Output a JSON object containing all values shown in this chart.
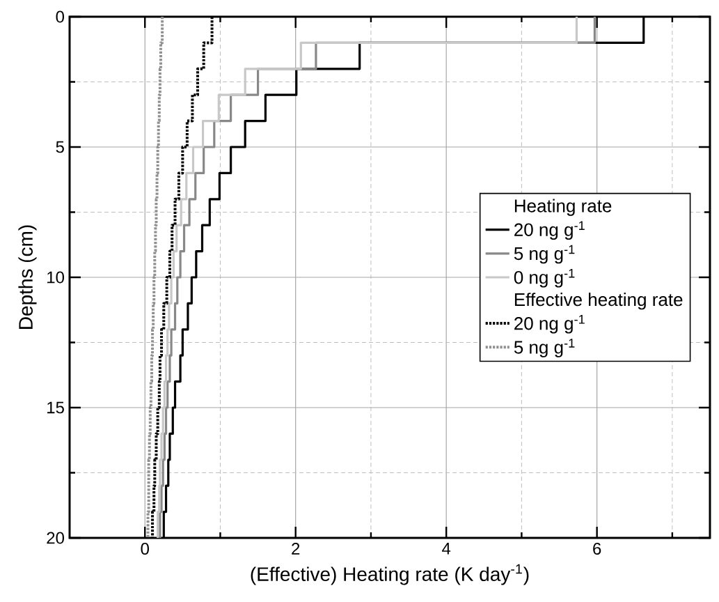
{
  "chart_data": {
    "type": "step",
    "orientation": "horizontal",
    "xlabel": "(Effective) Heating rate (K day$^{-1}$)",
    "ylabel": "Depths (cm)",
    "legend_title": "Heating rate",
    "annotations": [
      "Effective heating rate"
    ],
    "x": [
      0,
      1,
      2,
      3,
      4,
      5,
      6,
      7,
      8,
      9,
      10,
      11,
      12,
      13,
      14,
      15,
      16,
      17,
      18,
      19,
      20
    ],
    "series": [
      {
        "name": "20 ng g$^{-1}$",
        "color": "#000000",
        "line_style": "solid",
        "values": [
          6.62,
          2.85,
          2.01,
          1.6,
          1.33,
          1.14,
          0.99,
          0.86,
          0.76,
          0.68,
          0.62,
          0.57,
          0.5,
          0.47,
          0.4,
          0.37,
          0.33,
          0.31,
          0.28,
          0.25,
          0.25
        ]
      },
      {
        "name": "5 ng g$^{-1}$",
        "color": "#888888",
        "line_style": "solid",
        "values": [
          5.97,
          2.27,
          1.5,
          1.14,
          0.92,
          0.78,
          0.67,
          0.59,
          0.52,
          0.47,
          0.43,
          0.4,
          0.35,
          0.33,
          0.3,
          0.28,
          0.26,
          0.24,
          0.22,
          0.2,
          0.2
        ]
      },
      {
        "name": "0 ng g$^{-1}$",
        "color": "#c8c8c8",
        "line_style": "solid",
        "values": [
          5.73,
          2.07,
          1.33,
          0.98,
          0.77,
          0.64,
          0.55,
          0.48,
          0.42,
          0.38,
          0.35,
          0.32,
          0.3,
          0.28,
          0.26,
          0.24,
          0.22,
          0.2,
          0.19,
          0.17,
          0.17
        ]
      },
      {
        "name": "20 ng g$^{-1}$",
        "color": "#000000",
        "line_style": "dotted",
        "values": [
          0.89,
          0.78,
          0.7,
          0.63,
          0.56,
          0.5,
          0.45,
          0.4,
          0.36,
          0.33,
          0.29,
          0.25,
          0.22,
          0.2,
          0.19,
          0.17,
          0.15,
          0.13,
          0.12,
          0.1,
          0.1
        ]
      },
      {
        "name": "5 ng g$^{-1}$",
        "color": "#909090",
        "line_style": "dotted",
        "values": [
          0.23,
          0.21,
          0.2,
          0.19,
          0.18,
          0.17,
          0.16,
          0.15,
          0.14,
          0.13,
          0.12,
          0.11,
          0.1,
          0.09,
          0.08,
          0.07,
          0.06,
          0.05,
          0.05,
          0.04,
          0.04
        ]
      }
    ],
    "xlim": [
      -1,
      7.5
    ],
    "ylim": [
      20,
      0
    ],
    "xticks": [
      0,
      2,
      4,
      6,
      {
        "value": 1,
        "label": null
      },
      {
        "value": 3,
        "label": null
      },
      {
        "value": 5,
        "label": null
      },
      {
        "value": 7,
        "label": null
      }
    ],
    "yticks": [
      0,
      5,
      10,
      15,
      20,
      {
        "value": 2.5,
        "label": null
      },
      {
        "value": 7.5,
        "label": null
      },
      {
        "value": 12.5,
        "label": null
      },
      {
        "value": 17.5,
        "label": null
      }
    ],
    "grid": true,
    "legend": "right"
  }
}
